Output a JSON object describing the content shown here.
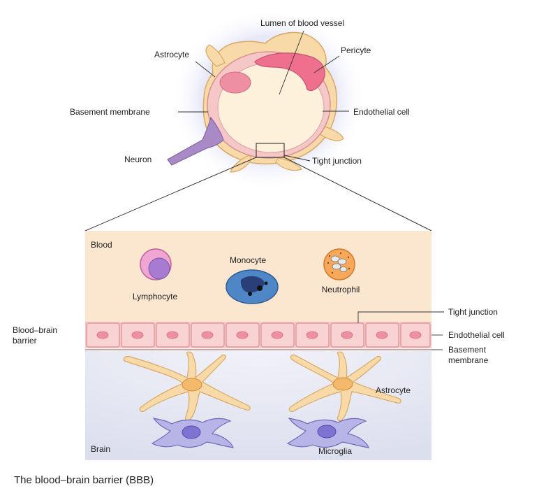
{
  "colors": {
    "blood_bg": "#fbe6cf",
    "brain_bg": "#e9ebf4",
    "astrocyte": "#f8d9a8",
    "astrocyte_stroke": "#d9a866",
    "endothelial": "#f6c7c7",
    "endothelial_stroke": "#d99090",
    "pericyte": "#ee6f8e",
    "microglia": "#b7b5e8",
    "neuron": "#a98ac7",
    "neutrophil": "#f7a85a",
    "monocyte": "#4f86c6",
    "lymphocyte": "#f0a6d2",
    "glow": "#c9cdf0"
  },
  "top_labels": {
    "lumen": "Lumen of blood vessel",
    "astrocyte": "Astrocyte",
    "pericyte": "Pericyte",
    "basement_membrane": "Basement membrane",
    "endothelial_cell": "Endothelial cell",
    "neuron": "Neuron",
    "tight_junction": "Tight junction"
  },
  "bottom_labels": {
    "blood": "Blood",
    "monocyte": "Monocyte",
    "lymphocyte": "Lymphocyte",
    "neutrophil": "Neutrophil",
    "bbb_line1": "Blood–brain",
    "bbb_line2": "barrier",
    "tight_junction": "Tight junction",
    "endothelial_cell": "Endothelial cell",
    "basement_line1": "Basement",
    "basement_line2": "membrane",
    "astrocyte": "Astrocyte",
    "brain": "Brain",
    "microglia": "Microglia"
  },
  "caption": "The blood–brain barrier (BBB)"
}
